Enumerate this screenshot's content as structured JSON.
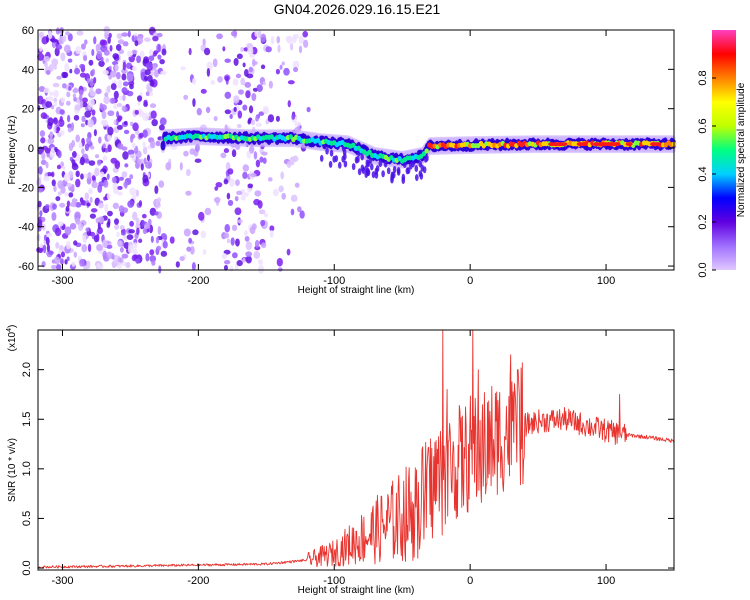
{
  "title": "GN04.2026.029.16.15.E21",
  "chart_data": [
    {
      "type": "heatmap",
      "name": "spectrogram",
      "xlabel": "Height of straight line (km)",
      "ylabel": "Frequency (Hz)",
      "xlim": [
        -318,
        150
      ],
      "ylim": [
        -62,
        60
      ],
      "x_ticks": [
        -300,
        -200,
        -100,
        0,
        100
      ],
      "y_ticks": [
        -60,
        -40,
        -20,
        0,
        20,
        40,
        60
      ],
      "ridge": [
        {
          "x": -225,
          "y": 5
        },
        {
          "x": -200,
          "y": 6
        },
        {
          "x": -160,
          "y": 5
        },
        {
          "x": -130,
          "y": 5
        },
        {
          "x": -110,
          "y": 3
        },
        {
          "x": -90,
          "y": 2
        },
        {
          "x": -70,
          "y": -4
        },
        {
          "x": -50,
          "y": -6
        },
        {
          "x": -35,
          "y": -4
        },
        {
          "x": -30,
          "y": 1
        },
        {
          "x": 0,
          "y": 1.5
        },
        {
          "x": 50,
          "y": 2
        },
        {
          "x": 100,
          "y": 2
        },
        {
          "x": 150,
          "y": 2
        }
      ],
      "colorbar": {
        "label": "Normalized spectral amplitude",
        "range": [
          0,
          1
        ],
        "ticks": [
          "0.0",
          "0.2",
          "0.4",
          "0.6",
          "0.8"
        ],
        "colors": [
          "#e0c8ff",
          "#a070ff",
          "#6000e0",
          "#0000ff",
          "#00d0ff",
          "#00ff80",
          "#c0ff00",
          "#ffff00",
          "#ff8000",
          "#ff0000",
          "#ff40c0"
        ]
      }
    },
    {
      "type": "line",
      "name": "snr",
      "xlabel": "Height of straight line (km)",
      "ylabel": "SNR (10 * v/v)",
      "y_multiplier": "(x10",
      "y_multiplier_exp": "4",
      "y_multiplier_close": ")",
      "xlim": [
        -318,
        150
      ],
      "ylim": [
        -0.02,
        2.4
      ],
      "x_ticks": [
        -300,
        -200,
        -100,
        0,
        100
      ],
      "y_ticks": [
        "0.0",
        "0.5",
        "1.0",
        "1.5",
        "2.0"
      ],
      "y_tick_values": [
        0,
        0.5,
        1.0,
        1.5,
        2.0
      ],
      "color": "#e8332e",
      "envelope": [
        {
          "x": -318,
          "y": 0.01
        },
        {
          "x": -250,
          "y": 0.02
        },
        {
          "x": -200,
          "y": 0.03
        },
        {
          "x": -150,
          "y": 0.04
        },
        {
          "x": -120,
          "y": 0.08
        },
        {
          "x": -100,
          "y": 0.15
        },
        {
          "x": -80,
          "y": 0.3
        },
        {
          "x": -60,
          "y": 0.45
        },
        {
          "x": -40,
          "y": 0.6
        },
        {
          "x": -25,
          "y": 0.9
        },
        {
          "x": -10,
          "y": 1.05
        },
        {
          "x": 10,
          "y": 1.2
        },
        {
          "x": 30,
          "y": 1.4
        },
        {
          "x": 50,
          "y": 1.48
        },
        {
          "x": 70,
          "y": 1.5
        },
        {
          "x": 90,
          "y": 1.42
        },
        {
          "x": 110,
          "y": 1.35
        },
        {
          "x": 130,
          "y": 1.32
        },
        {
          "x": 150,
          "y": 1.28
        }
      ],
      "peaks": [
        {
          "x": -20,
          "y": 2.4
        },
        {
          "x": -17,
          "y": 1.8
        },
        {
          "x": 2,
          "y": 2.4
        },
        {
          "x": 6,
          "y": 2.0
        },
        {
          "x": 30,
          "y": 2.15
        },
        {
          "x": 35,
          "y": 2.0
        },
        {
          "x": 110,
          "y": 1.75
        }
      ]
    }
  ]
}
